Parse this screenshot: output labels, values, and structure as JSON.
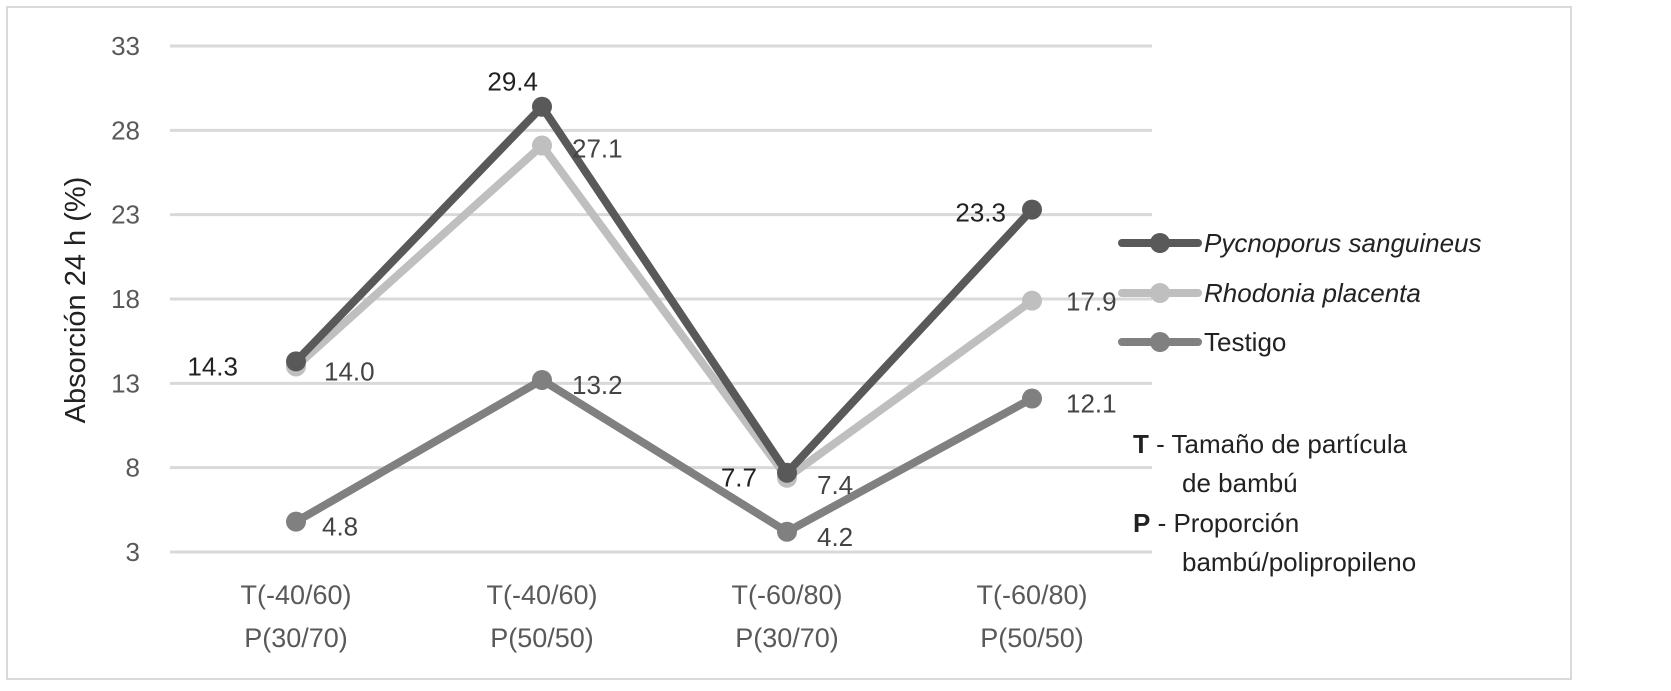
{
  "chart_data": {
    "type": "line",
    "ylabel": "Absorción 24 h (%)",
    "yticks": [
      "33",
      "28",
      "23",
      "18",
      "13",
      "8",
      "3"
    ],
    "ylim": [
      3,
      33
    ],
    "grid": true,
    "categories": [
      [
        "T(-40/60)",
        "P(30/70)"
      ],
      [
        "T(-40/60)",
        "P(50/50)"
      ],
      [
        "T(-60/80)",
        "P(30/70)"
      ],
      [
        "T(-60/80)",
        "P(50/50)"
      ]
    ],
    "series": [
      {
        "name": "Pycnoporus sanguineus",
        "italic": true,
        "color": "#595959",
        "values": [
          14.3,
          29.4,
          7.7,
          23.3
        ],
        "labels": [
          "14.3",
          "29.4",
          "7.7",
          "23.3"
        ]
      },
      {
        "name": "Rhodonia placenta",
        "italic": true,
        "color": "#bfbfbf",
        "values": [
          14.0,
          27.1,
          7.4,
          17.9
        ],
        "labels": [
          "14.0",
          "27.1",
          "7.4",
          "17.9"
        ]
      },
      {
        "name": "Testigo",
        "italic": false,
        "color": "#808080",
        "values": [
          4.8,
          13.2,
          4.2,
          12.1
        ],
        "labels": [
          "4.8",
          "13.2",
          "4.2",
          "12.1"
        ]
      }
    ],
    "legend_position": "right",
    "notes": [
      {
        "key": "T",
        "lines": [
          " -  Tamaño de partícula",
          "de bambú"
        ]
      },
      {
        "key": "P",
        "lines": [
          " - Proporción",
          "bambú/polipropileno"
        ]
      }
    ]
  }
}
